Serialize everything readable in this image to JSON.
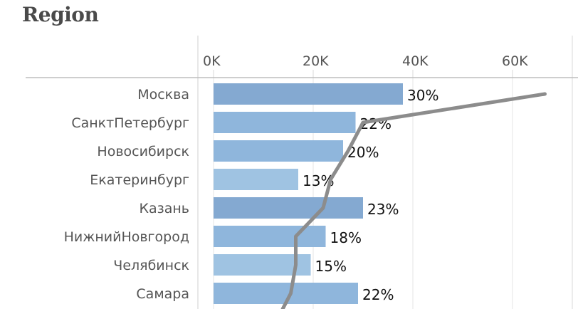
{
  "chart_data": {
    "type": "bar",
    "orientation": "horizontal",
    "title": "Region",
    "categories": [
      "Москва",
      "СанктПетербург",
      "Новосибирск",
      "Екатеринбург",
      "Казань",
      "НижнийНовгород",
      "Челябинск",
      "Самара"
    ],
    "series": [
      {
        "type": "bar",
        "values": [
          38000,
          28500,
          26000,
          17000,
          30000,
          22500,
          19500,
          29000
        ]
      },
      {
        "type": "line",
        "values": [
          66500,
          30000,
          27000,
          23500,
          22000,
          16500,
          16500,
          15500
        ]
      }
    ],
    "data_labels": [
      "30%",
      "22%",
      "20%",
      "13%",
      "23%",
      "18%",
      "15%",
      "22%"
    ],
    "xaxis": {
      "ticks": [
        0,
        20000,
        40000,
        60000
      ],
      "tick_labels": [
        "0K",
        "20K",
        "40K",
        "60K"
      ],
      "range": [
        0,
        70000
      ],
      "position": "top"
    },
    "grid": true,
    "colors": {
      "bar_light": "#9fc3e2",
      "bar_mid": "#8fb6dc",
      "bar_dark": "#84a9d1",
      "line": "#8c8c8c"
    }
  }
}
